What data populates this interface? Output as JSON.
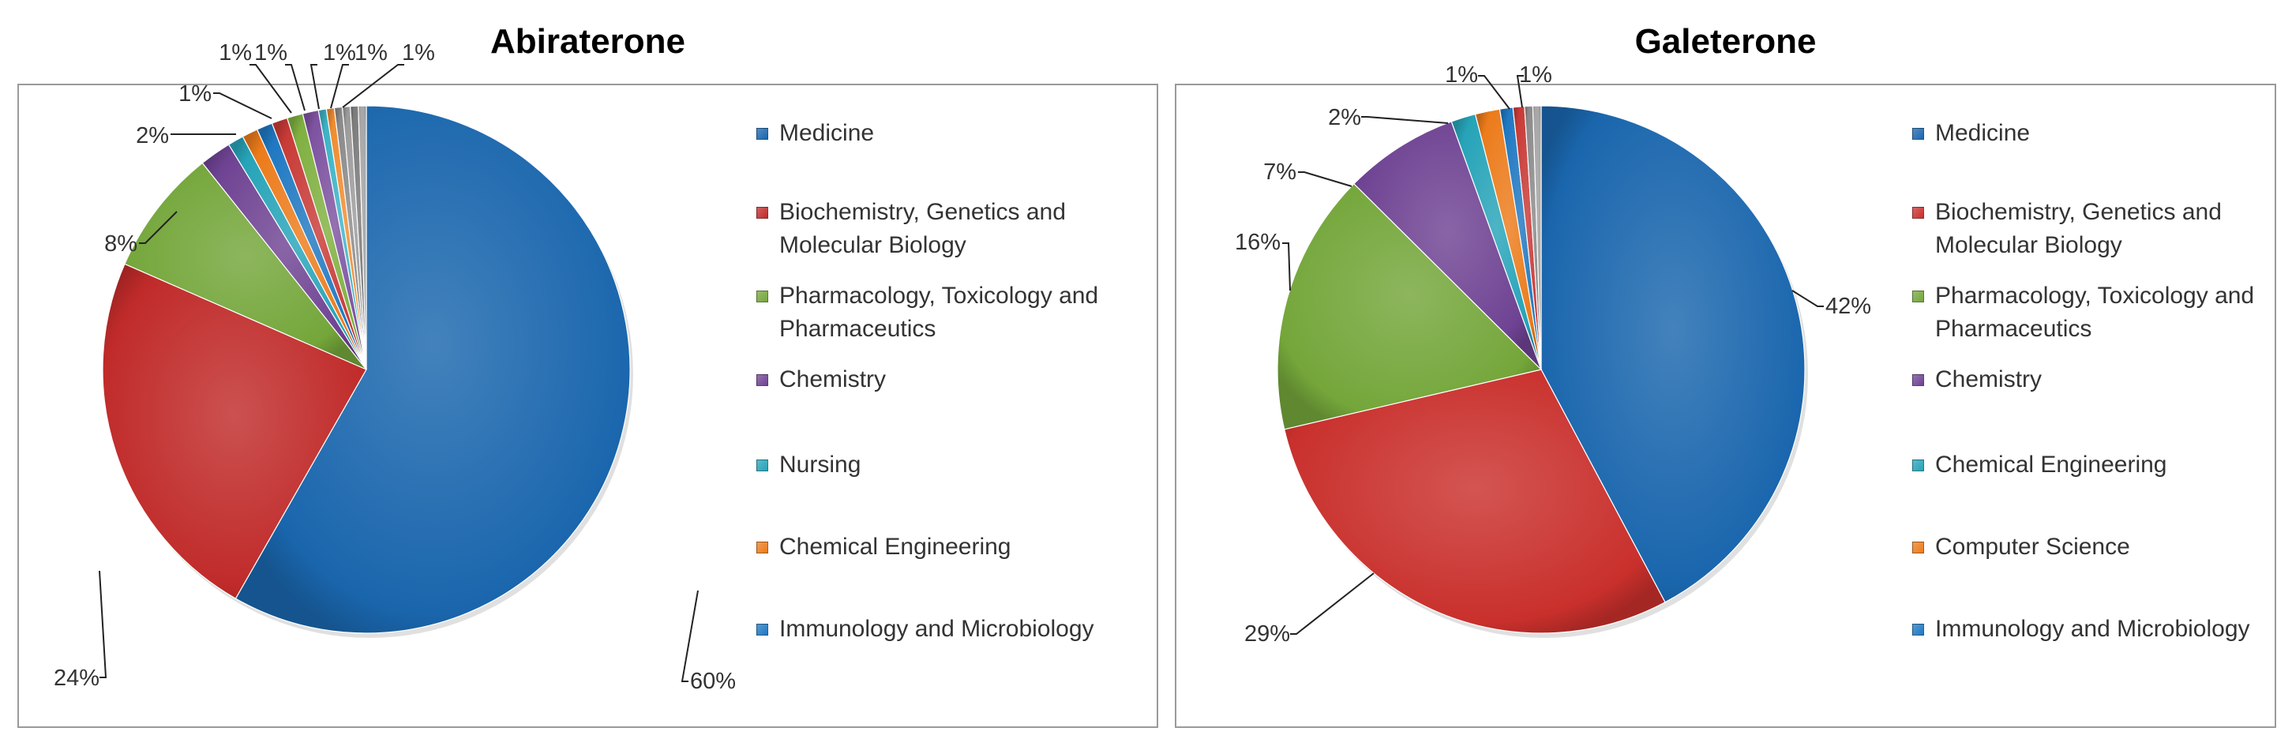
{
  "chart_data": [
    {
      "type": "pie",
      "title": "Abiraterone",
      "slices": [
        {
          "label": "Medicine",
          "value": 60,
          "color": "#1a66ad",
          "display": "60%"
        },
        {
          "label": "Biochemistry, Genetics and Molecular Biology",
          "value": 24,
          "color": "#c02b2a",
          "display": "24%"
        },
        {
          "label": "Pharmacology, Toxicology and Pharmaceutics",
          "value": 8,
          "color": "#74a63a",
          "display": "8%"
        },
        {
          "label": "Chemistry",
          "value": 2,
          "color": "#6f4393",
          "display": "2%"
        },
        {
          "label": "Nursing",
          "value": 1,
          "color": "#26a3b8",
          "display": "1%"
        },
        {
          "label": "Chemical Engineering",
          "value": 1,
          "color": "#ec7b1b",
          "display": "1%"
        },
        {
          "label": "Immunology and Microbiology",
          "value": 1,
          "color": "#1f78c1",
          "display": "1%"
        },
        {
          "label": "",
          "value": 1,
          "color": "#c83a36",
          "display": "1%"
        },
        {
          "label": "",
          "value": 1,
          "color": "#7fb040",
          "display": "1%"
        },
        {
          "label": "",
          "value": 1,
          "color": "#7d52a0",
          "display": "1%"
        },
        {
          "label": "",
          "value": 0.5,
          "color": "#3cb3c6",
          "display": ""
        },
        {
          "label": "",
          "value": 0.5,
          "color": "#f08c30",
          "display": ""
        },
        {
          "label": "",
          "value": 0.5,
          "color": "#8a8a8a",
          "display": ""
        },
        {
          "label": "",
          "value": 0.5,
          "color": "#9b9b9b",
          "display": ""
        },
        {
          "label": "",
          "value": 0.5,
          "color": "#7a7a7a",
          "display": ""
        },
        {
          "label": "",
          "value": 0.5,
          "color": "#a5a5a5",
          "display": ""
        }
      ],
      "legend": [
        "Medicine",
        "Biochemistry, Genetics and Molecular Biology",
        "Pharmacology, Toxicology and Pharmaceutics",
        "Chemistry",
        "Nursing",
        "Chemical Engineering",
        "Immunology and Microbiology"
      ],
      "legend_colors": [
        "#1a66ad",
        "#c02b2a",
        "#74a63a",
        "#6f4393",
        "#26a3b8",
        "#ec7b1b",
        "#1f78c1"
      ]
    },
    {
      "type": "pie",
      "title": "Galeterone",
      "slices": [
        {
          "label": "Medicine",
          "value": 42,
          "color": "#1a66ad",
          "display": "42%"
        },
        {
          "label": "Biochemistry, Genetics and Molecular Biology",
          "value": 29,
          "color": "#c9302c",
          "display": "29%"
        },
        {
          "label": "Pharmacology, Toxicology and Pharmaceutics",
          "value": 16,
          "color": "#74a63a",
          "display": "16%"
        },
        {
          "label": "Chemistry",
          "value": 7,
          "color": "#6f4393",
          "display": "7%"
        },
        {
          "label": "Chemical Engineering",
          "value": 1.5,
          "color": "#26a3b8",
          "display": "2%"
        },
        {
          "label": "Computer Science",
          "value": 1.5,
          "color": "#ec7b1b",
          "display": ""
        },
        {
          "label": "Immunology and Microbiology",
          "value": 0.8,
          "color": "#1f78c1",
          "display": "1%"
        },
        {
          "label": "",
          "value": 0.7,
          "color": "#c83a36",
          "display": "1%"
        },
        {
          "label": "",
          "value": 0.5,
          "color": "#8a8a8a",
          "display": ""
        },
        {
          "label": "",
          "value": 0.5,
          "color": "#a5a5a5",
          "display": ""
        }
      ],
      "legend": [
        "Medicine",
        "Biochemistry, Genetics and Molecular Biology",
        "Pharmacology, Toxicology and Pharmaceutics",
        "Chemistry",
        "Chemical Engineering",
        "Computer Science",
        "Immunology and Microbiology"
      ],
      "legend_colors": [
        "#1a66ad",
        "#c9302c",
        "#74a63a",
        "#6f4393",
        "#26a3b8",
        "#ec7b1b",
        "#1f78c1"
      ]
    }
  ]
}
